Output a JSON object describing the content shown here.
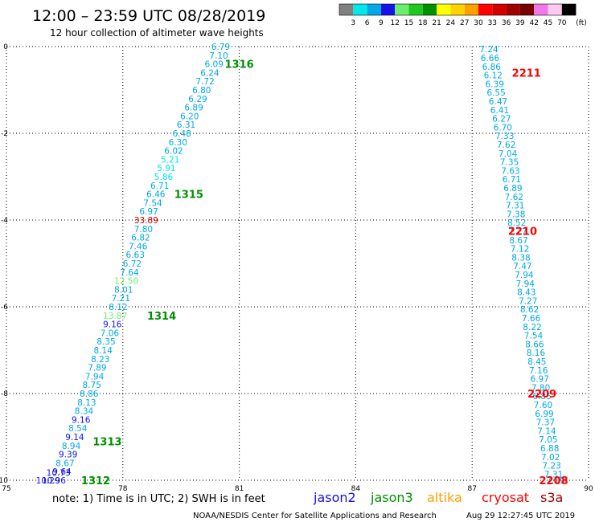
{
  "chart_data": {
    "type": "scatter",
    "title": "12:00 – 23:59 UTC 08/28/2019",
    "subtitle": "12 hour collection of altimeter wave heights",
    "xlim": [
      75,
      90
    ],
    "ylim": [
      -10,
      0
    ],
    "x_ticks": [
      "75",
      "78",
      "81",
      "84",
      "87",
      "90"
    ],
    "y_ticks": [
      "0",
      "-2",
      "-4",
      "-6",
      "-8",
      "-10"
    ],
    "grid": true,
    "colorbar": {
      "labels": [
        "3",
        "6",
        "9",
        "12",
        "15",
        "18",
        "21",
        "24",
        "27",
        "30",
        "33",
        "36",
        "39",
        "42",
        "45",
        "70"
      ],
      "unit": "(ft)",
      "colors": [
        "#808080",
        "#00e8e8",
        "#00a8e8",
        "#1414e8",
        "#6cee6c",
        "#20c820",
        "#009000",
        "#ffff00",
        "#ffd200",
        "#ffa000",
        "#ff0000",
        "#d40000",
        "#a00000",
        "#780000",
        "#f078e8",
        "#ffc8f0",
        "#000000"
      ]
    },
    "legend": [
      {
        "label": "jason2",
        "color": "#1414e8"
      },
      {
        "label": "jason3",
        "color": "#009000"
      },
      {
        "label": "altika",
        "color": "#ffa000"
      },
      {
        "label": "cryosat",
        "color": "#ff0000"
      },
      {
        "label": "s3a",
        "color": "#a00000"
      }
    ],
    "note": "note:  1) Time is in UTC; 2) SWH is in feet",
    "footer": "NOAA/NESDIS Center for Satellite Applications and Research",
    "timestamp": "Aug 29 12:27:45 UTC 2019",
    "track_labels": [
      {
        "text": "1316",
        "x": 81.0,
        "y": -0.4,
        "color": "#009000"
      },
      {
        "text": "1315",
        "x": 79.7,
        "y": -3.4,
        "color": "#009000"
      },
      {
        "text": "1314",
        "x": 79.0,
        "y": -6.2,
        "color": "#009000"
      },
      {
        "text": "1313",
        "x": 77.6,
        "y": -9.1,
        "color": "#009000"
      },
      {
        "text": "1312",
        "x": 77.3,
        "y": -10.0,
        "color": "#009000"
      },
      {
        "text": "2211",
        "x": 88.4,
        "y": -0.6,
        "color": "#ff0000"
      },
      {
        "text": "2210",
        "x": 88.3,
        "y": -4.25,
        "color": "#ff0000"
      },
      {
        "text": "2209",
        "x": 88.8,
        "y": -8.0,
        "color": "#ff0000"
      },
      {
        "text": "2208",
        "x": 89.1,
        "y": -10.0,
        "color": "#ff0000"
      }
    ],
    "series": [
      {
        "x": [
          80.52,
          80.47,
          80.35,
          80.24,
          80.12,
          80.03,
          79.93,
          79.83,
          79.72,
          79.63,
          79.52,
          79.42,
          79.31,
          79.22,
          79.12,
          79.05,
          78.95,
          78.85,
          78.77,
          78.67,
          78.6,
          78.53,
          78.46,
          78.39,
          78.32,
          78.24,
          78.17,
          78.09,
          78.02,
          77.95,
          77.88,
          77.8,
          77.73,
          77.66,
          77.57,
          77.49,
          77.42,
          77.34,
          77.27,
          77.2,
          77.13,
          77.07,
          77.0,
          76.92,
          76.84,
          76.76,
          76.67,
          76.59,
          76.51,
          76.43,
          76.34,
          76.22,
          76.07
        ],
        "y": [
          0.0,
          -0.2,
          -0.4,
          -0.6,
          -0.8,
          -1.0,
          -1.2,
          -1.4,
          -1.6,
          -1.8,
          -2.0,
          -2.2,
          -2.4,
          -2.6,
          -2.8,
          -3.0,
          -3.2,
          -3.4,
          -3.6,
          -3.8,
          -4.0,
          -4.2,
          -4.4,
          -4.6,
          -4.8,
          -5.0,
          -5.2,
          -5.4,
          -5.6,
          -5.8,
          -6.0,
          -6.2,
          -6.4,
          -6.6,
          -6.8,
          -7.0,
          -7.2,
          -7.4,
          -7.6,
          -7.8,
          -8.0,
          -8.2,
          -8.4,
          -8.6,
          -8.8,
          -9.0,
          -9.2,
          -9.4,
          -9.6,
          -9.8,
          -9.82,
          -10.0,
          -10.0
        ],
        "values": [
          "6.79",
          "7.10",
          "6.09",
          "6.24",
          "7.72",
          "6.80",
          "6.29",
          "6.89",
          "6.20",
          "6.31",
          "6.48",
          "6.30",
          "6.02",
          "5.21",
          "5.91",
          "5.86",
          "6.71",
          "6.46",
          "7.54",
          "6.97",
          "33.89",
          "7.80",
          "6.82",
          "7.46",
          "6.63",
          "6.72",
          "7.64",
          "12.50",
          "8.01",
          "7.21",
          "8.12",
          "13.87",
          "9.16",
          "7.06",
          "8.35",
          "8.14",
          "8.23",
          "7.89",
          "7.94",
          "8.75",
          "8.86",
          "8.13",
          "8.34",
          "9.16",
          "8.54",
          "9.14",
          "8.94",
          "9.39",
          "8.67",
          "9.64",
          "10.73",
          "10.96",
          "10.29"
        ]
      },
      {
        "x": [
          87.43,
          87.46,
          87.5,
          87.54,
          87.58,
          87.62,
          87.67,
          87.71,
          87.76,
          87.79,
          87.84,
          87.88,
          87.92,
          87.96,
          87.99,
          88.02,
          88.05,
          88.08,
          88.11,
          88.13,
          88.15,
          88.17,
          88.2,
          88.23,
          88.26,
          88.3,
          88.34,
          88.37,
          88.4,
          88.44,
          88.48,
          88.52,
          88.55,
          88.58,
          88.61,
          88.64,
          88.67,
          88.71,
          88.74,
          88.77,
          88.8,
          88.83,
          88.86,
          88.89,
          88.92,
          88.96,
          89.0,
          89.02,
          89.05,
          89.1,
          89.15
        ],
        "y": [
          -0.06,
          -0.26,
          -0.46,
          -0.66,
          -0.86,
          -1.06,
          -1.26,
          -1.46,
          -1.66,
          -1.86,
          -2.06,
          -2.26,
          -2.46,
          -2.66,
          -2.86,
          -3.06,
          -3.26,
          -3.46,
          -3.66,
          -3.86,
          -4.06,
          -4.26,
          -4.46,
          -4.66,
          -4.86,
          -5.06,
          -5.26,
          -5.46,
          -5.66,
          -5.86,
          -6.06,
          -6.26,
          -6.46,
          -6.66,
          -6.86,
          -7.06,
          -7.26,
          -7.46,
          -7.66,
          -7.86,
          -8.06,
          -8.26,
          -8.46,
          -8.66,
          -8.86,
          -9.06,
          -9.26,
          -9.46,
          -9.66,
          -9.86,
          -10.0
        ],
        "values": [
          "7.24",
          "6.66",
          "6.86",
          "6.12",
          "6.39",
          "6.55",
          "6.47",
          "6.41",
          "6.27",
          "6.70",
          "7.33",
          "7.62",
          "7.04",
          "7.35",
          "7.63",
          "6.71",
          "6.89",
          "7.62",
          "7.31",
          "7.38",
          "8.52",
          "7.77",
          "8.67",
          "7.12",
          "8.38",
          "7.47",
          "7.94",
          "7.94",
          "8.43",
          "7.27",
          "8.62",
          "7.66",
          "8.22",
          "7.54",
          "8.66",
          "8.16",
          "8.45",
          "7.16",
          "6.97",
          "7.80",
          "6.85",
          "7.60",
          "6.99",
          "7.37",
          "7.14",
          "7.05",
          "6.88",
          "7.02",
          "7.23",
          "7.31",
          "7.19"
        ]
      }
    ]
  }
}
